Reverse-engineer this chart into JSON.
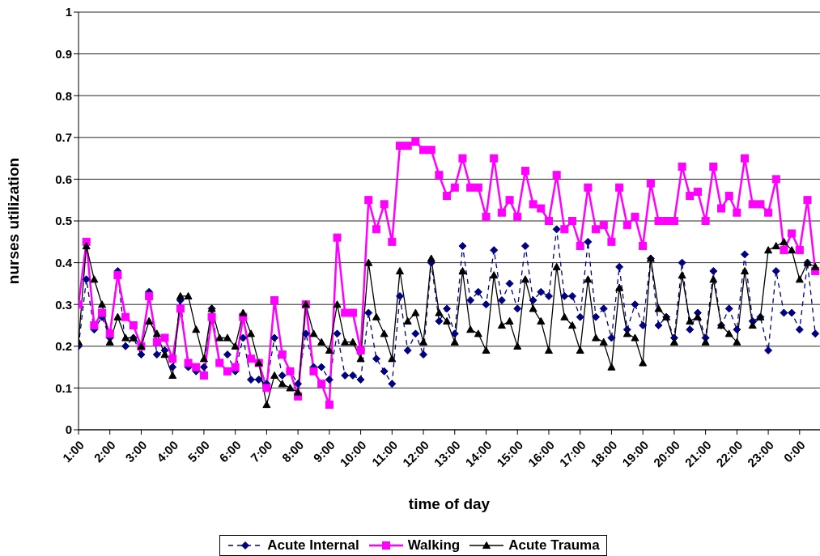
{
  "chart_data": {
    "type": "line",
    "xlabel": "time of day",
    "ylabel": "nurses utilization",
    "x": [
      1,
      1.25,
      1.5,
      1.75,
      2,
      2.25,
      2.5,
      2.75,
      3,
      3.25,
      3.5,
      3.75,
      4,
      4.25,
      4.5,
      4.75,
      5,
      5.25,
      5.5,
      5.75,
      6,
      6.25,
      6.5,
      6.75,
      7,
      7.25,
      7.5,
      7.75,
      8,
      8.25,
      8.5,
      8.75,
      9,
      9.25,
      9.5,
      9.75,
      10,
      10.25,
      10.5,
      10.75,
      11,
      11.25,
      11.5,
      11.75,
      12,
      12.25,
      12.5,
      12.75,
      13,
      13.25,
      13.5,
      13.75,
      14,
      14.25,
      14.5,
      14.75,
      15,
      15.25,
      15.5,
      15.75,
      16,
      16.25,
      16.5,
      16.75,
      17,
      17.25,
      17.5,
      17.75,
      18,
      18.25,
      18.5,
      18.75,
      19,
      19.25,
      19.5,
      19.75,
      20,
      20.25,
      20.5,
      20.75,
      21,
      21.25,
      21.5,
      21.75,
      22,
      22.25,
      22.5,
      22.75,
      23,
      23.25,
      23.5,
      23.75,
      24,
      24.25,
      24.5
    ],
    "series": [
      {
        "name": "Acute Internal",
        "color": "#000080",
        "marker": "diamond",
        "line_style": "dashed",
        "values": [
          0.2,
          0.36,
          0.24,
          0.27,
          0.22,
          0.38,
          0.2,
          0.22,
          0.18,
          0.33,
          0.18,
          0.19,
          0.15,
          0.31,
          0.15,
          0.14,
          0.15,
          0.29,
          0.16,
          0.18,
          0.14,
          0.22,
          0.12,
          0.12,
          0.11,
          0.22,
          0.13,
          0.14,
          0.11,
          0.23,
          0.15,
          0.15,
          0.12,
          0.23,
          0.13,
          0.13,
          0.12,
          0.28,
          0.17,
          0.14,
          0.11,
          0.32,
          0.19,
          0.23,
          0.18,
          0.4,
          0.26,
          0.29,
          0.23,
          0.44,
          0.31,
          0.33,
          0.3,
          0.43,
          0.31,
          0.35,
          0.29,
          0.44,
          0.31,
          0.33,
          0.32,
          0.48,
          0.32,
          0.32,
          0.27,
          0.45,
          0.27,
          0.29,
          0.22,
          0.39,
          0.24,
          0.3,
          0.25,
          0.41,
          0.25,
          0.27,
          0.22,
          0.4,
          0.24,
          0.28,
          0.22,
          0.38,
          0.25,
          0.29,
          0.24,
          0.42,
          0.26,
          0.27,
          0.19,
          0.38,
          0.28,
          0.28,
          0.24,
          0.4,
          0.23
        ]
      },
      {
        "name": "Walking",
        "color": "#ff00ff",
        "marker": "square",
        "line_style": "solid",
        "values": [
          0.3,
          0.45,
          0.25,
          0.28,
          0.23,
          0.37,
          0.27,
          0.25,
          0.2,
          0.32,
          0.21,
          0.22,
          0.17,
          0.29,
          0.16,
          0.15,
          0.13,
          0.27,
          0.16,
          0.14,
          0.15,
          0.27,
          0.17,
          0.16,
          0.1,
          0.31,
          0.18,
          0.14,
          0.08,
          0.3,
          0.14,
          0.11,
          0.06,
          0.46,
          0.28,
          0.28,
          0.19,
          0.55,
          0.48,
          0.54,
          0.45,
          0.68,
          0.68,
          0.69,
          0.67,
          0.67,
          0.61,
          0.56,
          0.58,
          0.65,
          0.58,
          0.58,
          0.51,
          0.65,
          0.52,
          0.55,
          0.51,
          0.62,
          0.54,
          0.53,
          0.5,
          0.61,
          0.48,
          0.5,
          0.44,
          0.58,
          0.48,
          0.49,
          0.45,
          0.58,
          0.49,
          0.51,
          0.44,
          0.59,
          0.5,
          0.5,
          0.5,
          0.63,
          0.56,
          0.57,
          0.5,
          0.63,
          0.53,
          0.56,
          0.52,
          0.65,
          0.54,
          0.54,
          0.52,
          0.6,
          0.43,
          0.47,
          0.43,
          0.55,
          0.38
        ]
      },
      {
        "name": "Acute Trauma",
        "color": "#000000",
        "marker": "triangle",
        "line_style": "solid",
        "values": [
          0.21,
          0.44,
          0.36,
          0.3,
          0.21,
          0.27,
          0.22,
          0.22,
          0.2,
          0.26,
          0.23,
          0.18,
          0.13,
          0.32,
          0.32,
          0.24,
          0.17,
          0.29,
          0.22,
          0.22,
          0.2,
          0.28,
          0.23,
          0.16,
          0.06,
          0.13,
          0.11,
          0.1,
          0.09,
          0.3,
          0.23,
          0.21,
          0.19,
          0.3,
          0.21,
          0.21,
          0.17,
          0.4,
          0.27,
          0.23,
          0.17,
          0.38,
          0.26,
          0.28,
          0.21,
          0.41,
          0.28,
          0.26,
          0.21,
          0.38,
          0.24,
          0.23,
          0.19,
          0.37,
          0.25,
          0.26,
          0.2,
          0.36,
          0.29,
          0.26,
          0.19,
          0.39,
          0.27,
          0.25,
          0.19,
          0.36,
          0.22,
          0.21,
          0.15,
          0.34,
          0.23,
          0.22,
          0.16,
          0.41,
          0.29,
          0.27,
          0.21,
          0.37,
          0.26,
          0.27,
          0.21,
          0.36,
          0.25,
          0.23,
          0.21,
          0.38,
          0.25,
          0.27,
          0.43,
          0.44,
          0.45,
          0.43,
          0.36,
          0.4,
          0.39
        ]
      }
    ],
    "xlim": [
      1,
      24.65
    ],
    "xticks": [
      {
        "value": 1,
        "label": "1:00"
      },
      {
        "value": 2,
        "label": "2:00"
      },
      {
        "value": 3,
        "label": "3:00"
      },
      {
        "value": 4,
        "label": "4:00"
      },
      {
        "value": 5,
        "label": "5:00"
      },
      {
        "value": 6,
        "label": "6:00"
      },
      {
        "value": 7,
        "label": "7:00"
      },
      {
        "value": 8,
        "label": "8:00"
      },
      {
        "value": 9,
        "label": "9:00"
      },
      {
        "value": 10,
        "label": "10:00"
      },
      {
        "value": 11,
        "label": "11:00"
      },
      {
        "value": 12,
        "label": "12:00"
      },
      {
        "value": 13,
        "label": "13:00"
      },
      {
        "value": 14,
        "label": "14:00"
      },
      {
        "value": 15,
        "label": "15:00"
      },
      {
        "value": 16,
        "label": "16:00"
      },
      {
        "value": 17,
        "label": "17:00"
      },
      {
        "value": 18,
        "label": "18:00"
      },
      {
        "value": 19,
        "label": "19:00"
      },
      {
        "value": 20,
        "label": "20:00"
      },
      {
        "value": 21,
        "label": "21:00"
      },
      {
        "value": 22,
        "label": "22:00"
      },
      {
        "value": 23,
        "label": "23:00"
      },
      {
        "value": 24,
        "label": "0:00"
      }
    ],
    "ylim": [
      0,
      1
    ],
    "yticks": [
      0,
      0.1,
      0.2,
      0.3,
      0.4,
      0.5,
      0.6,
      0.7,
      0.8,
      0.9,
      1
    ],
    "grid": "y",
    "legend": "bottom"
  }
}
